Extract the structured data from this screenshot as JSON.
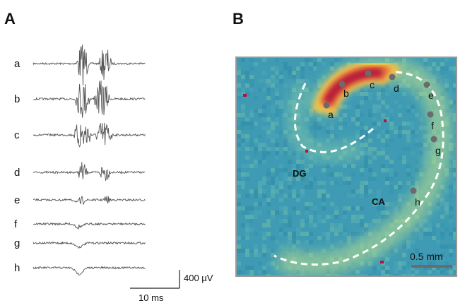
{
  "panels": {
    "a": {
      "label": "A"
    },
    "b": {
      "label": "B"
    }
  },
  "traces": [
    {
      "label": "a"
    },
    {
      "label": "b"
    },
    {
      "label": "c"
    },
    {
      "label": "d"
    },
    {
      "label": "e"
    },
    {
      "label": "f"
    },
    {
      "label": "g"
    },
    {
      "label": "h"
    }
  ],
  "scalebars": {
    "amplitude": "400 µV",
    "time": "10 ms"
  },
  "map": {
    "electrodes": [
      "a",
      "b",
      "c",
      "d",
      "e",
      "f",
      "g",
      "h"
    ],
    "region_labels": {
      "dg": "DG",
      "ca": "CA"
    },
    "scale_label": "0.5 mm",
    "colors": {
      "background": "#3e9bb3",
      "hot": "#b5123a",
      "warm": "#f2c24a",
      "electrode": "#6b6b6b",
      "outline": "#ffffff"
    }
  }
}
